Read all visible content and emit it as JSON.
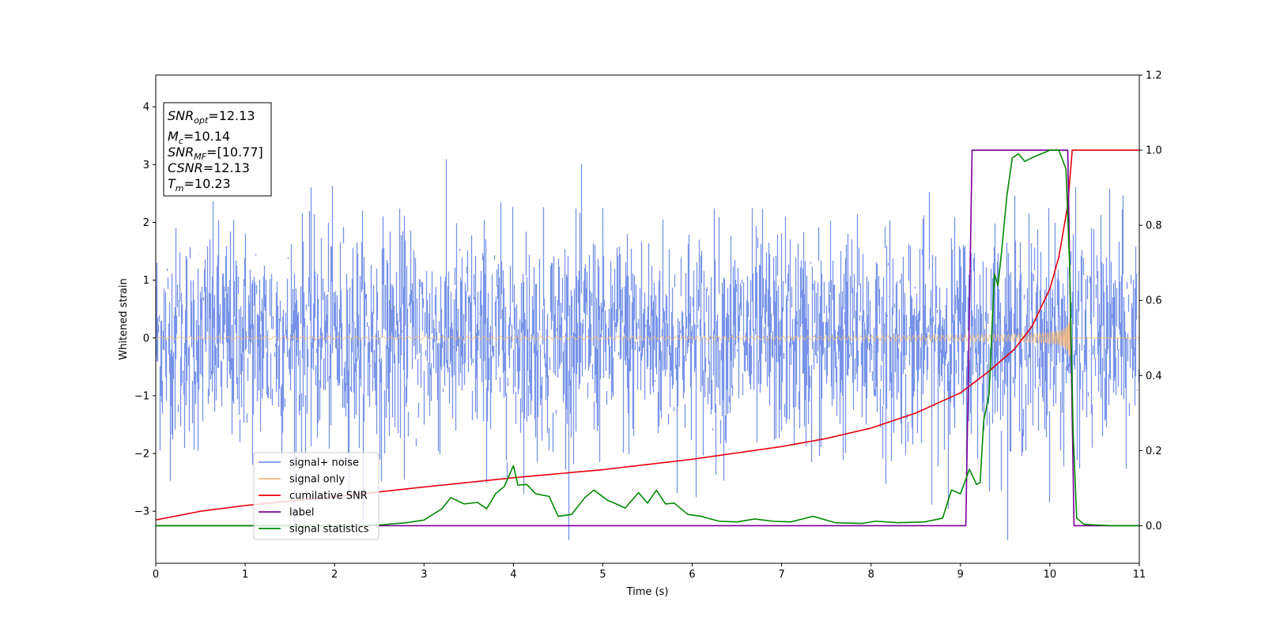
{
  "chart_data": {
    "type": "line",
    "title": "",
    "xlabel": "Time (s)",
    "ylabel": "Whitened strain",
    "xlim": [
      0,
      11
    ],
    "ylim_left": [
      -3.9,
      4.55
    ],
    "ylim_right": [
      -0.1,
      1.2
    ],
    "x_ticks": [
      "0",
      "1",
      "2",
      "3",
      "4",
      "5",
      "6",
      "7",
      "8",
      "9",
      "10",
      "11"
    ],
    "y_ticks_left": [
      "−3",
      "−2",
      "−1",
      "0",
      "1",
      "2",
      "3",
      "4"
    ],
    "y_ticks_right": [
      "0.0",
      "0.2",
      "0.4",
      "0.6",
      "0.8",
      "1.0",
      "1.2"
    ],
    "grid": false,
    "legend_location": "lower-left",
    "annotation": {
      "snr_opt": {
        "var": "SNR",
        "sub": "opt",
        "value": "=12.13"
      },
      "mc": {
        "var": "M",
        "sub": "c",
        "value": "=10.14"
      },
      "snr_mf": {
        "var": "SNR",
        "sub": "MF",
        "value": "=[10.77]"
      },
      "csnr": {
        "var": "CSNR",
        "value": "=12.13"
      },
      "tm": {
        "var": "T",
        "sub": "m",
        "value": "=10.23"
      }
    },
    "series": [
      {
        "name": "signal+ noise",
        "axis": "left",
        "color": "#7893e8",
        "description": "whitened noise plus signal, roughly gaussian with sigma ~1, spanning about -3.5 to 3.3",
        "sigma": 1.0
      },
      {
        "name": "signal only",
        "axis": "left",
        "color": "#f2b879",
        "description": "chirp whose amplitude grows from ~0.02 to ~1.0 before merging near 10.23 s",
        "t_merge": 10.23
      },
      {
        "name": "cumilative SNR",
        "axis": "left",
        "color": "#e8000b",
        "x": [
          0,
          0.5,
          1,
          2,
          3,
          4,
          5,
          6,
          7,
          7.5,
          8,
          8.5,
          9,
          9.3,
          9.6,
          9.8,
          10.0,
          10.1,
          10.2,
          10.25,
          11
        ],
        "y": [
          -3.15,
          -3.0,
          -2.9,
          -2.75,
          -2.58,
          -2.42,
          -2.28,
          -2.1,
          -1.88,
          -1.74,
          -1.56,
          -1.3,
          -0.95,
          -0.6,
          -0.2,
          0.2,
          0.85,
          1.4,
          2.3,
          3.25,
          3.25
        ]
      },
      {
        "name": "label",
        "axis": "right",
        "color": "#7b0099",
        "x": [
          0,
          9.06,
          9.13,
          10.2,
          10.27,
          11
        ],
        "y": [
          0,
          0,
          1,
          1,
          0,
          0
        ]
      },
      {
        "name": "signal statistics",
        "axis": "right",
        "color": "#008a00",
        "x": [
          0,
          2.0,
          2.5,
          2.8,
          3.0,
          3.2,
          3.3,
          3.45,
          3.6,
          3.7,
          3.8,
          3.9,
          4.0,
          4.05,
          4.15,
          4.25,
          4.4,
          4.5,
          4.65,
          4.8,
          4.9,
          5.05,
          5.15,
          5.25,
          5.4,
          5.5,
          5.6,
          5.7,
          5.8,
          5.95,
          6.1,
          6.3,
          6.5,
          6.7,
          6.9,
          7.1,
          7.35,
          7.6,
          7.9,
          8.05,
          8.3,
          8.6,
          8.8,
          8.9,
          9.0,
          9.1,
          9.18,
          9.22,
          9.26,
          9.32,
          9.38,
          9.42,
          9.46,
          9.52,
          9.58,
          9.65,
          9.72,
          9.8,
          9.9,
          10.0,
          10.1,
          10.18,
          10.22,
          10.26,
          10.3,
          10.38,
          10.5,
          10.7,
          11.0
        ],
        "y": [
          0.0,
          0.0,
          0.002,
          0.008,
          0.015,
          0.045,
          0.075,
          0.058,
          0.062,
          0.045,
          0.085,
          0.105,
          0.16,
          0.108,
          0.11,
          0.085,
          0.078,
          0.025,
          0.03,
          0.075,
          0.095,
          0.068,
          0.058,
          0.047,
          0.088,
          0.06,
          0.095,
          0.058,
          0.06,
          0.03,
          0.025,
          0.012,
          0.01,
          0.018,
          0.012,
          0.01,
          0.025,
          0.008,
          0.006,
          0.012,
          0.008,
          0.01,
          0.02,
          0.095,
          0.085,
          0.15,
          0.11,
          0.115,
          0.28,
          0.35,
          0.67,
          0.64,
          0.73,
          0.88,
          0.98,
          0.99,
          0.97,
          0.98,
          0.99,
          1.0,
          1.0,
          0.95,
          0.7,
          0.25,
          0.02,
          0.004,
          0.002,
          0.0,
          0.0
        ]
      }
    ]
  }
}
